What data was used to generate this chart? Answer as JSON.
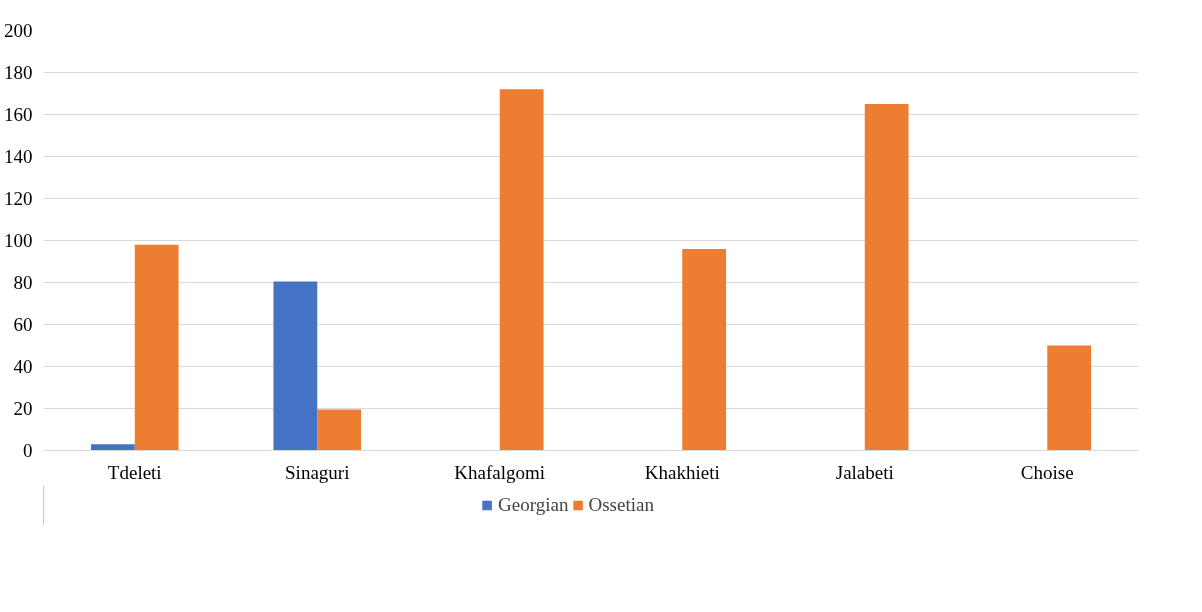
{
  "chart_data": {
    "type": "bar",
    "categories": [
      "Tdeleti",
      "Sinaguri",
      "Khafalgomi",
      "Khakhieti",
      "Jalabeti",
      "Choise"
    ],
    "series": [
      {
        "name": "Georgian",
        "color": "#4472c4",
        "values": [
          3,
          80.5,
          0,
          0,
          0,
          0
        ]
      },
      {
        "name": "Ossetian",
        "color": "#ed7d31",
        "values": [
          98,
          19.5,
          172,
          96,
          165,
          50
        ]
      }
    ],
    "ylim": [
      0,
      200
    ],
    "yticks": [
      0,
      20,
      40,
      60,
      80,
      100,
      120,
      140,
      160,
      180,
      200
    ],
    "grid": "y",
    "legend": "bottom"
  }
}
